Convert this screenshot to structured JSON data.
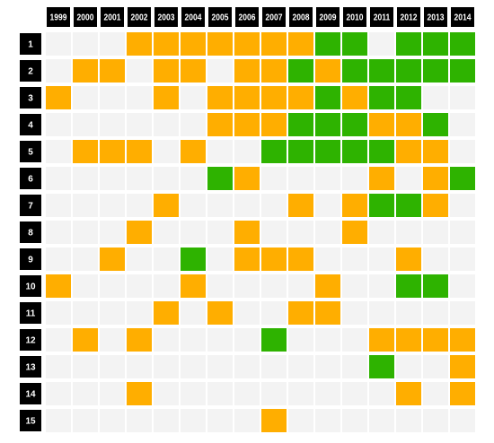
{
  "chart_data": {
    "type": "heatmap",
    "x": [
      "1999",
      "2000",
      "2001",
      "2002",
      "2003",
      "2004",
      "2005",
      "2006",
      "2007",
      "2008",
      "2009",
      "2010",
      "2011",
      "2012",
      "2013",
      "2014"
    ],
    "y": [
      "1",
      "2",
      "3",
      "4",
      "5",
      "6",
      "7",
      "8",
      "9",
      "10",
      "11",
      "12",
      "13",
      "14",
      "15"
    ],
    "colors": {
      "0": "#f3f3f3",
      "1": "#ffae00",
      "2": "#2eb300"
    },
    "values": [
      [
        0,
        0,
        0,
        1,
        1,
        1,
        1,
        1,
        1,
        1,
        2,
        2,
        0,
        2,
        2,
        2
      ],
      [
        0,
        1,
        1,
        0,
        1,
        1,
        0,
        1,
        1,
        2,
        1,
        2,
        2,
        2,
        2,
        2
      ],
      [
        1,
        0,
        0,
        0,
        1,
        0,
        1,
        1,
        1,
        1,
        2,
        1,
        2,
        2,
        0,
        0
      ],
      [
        0,
        0,
        0,
        0,
        0,
        0,
        1,
        1,
        1,
        2,
        2,
        2,
        1,
        1,
        2,
        0
      ],
      [
        0,
        1,
        1,
        1,
        0,
        1,
        0,
        0,
        2,
        2,
        2,
        2,
        2,
        1,
        1,
        0
      ],
      [
        0,
        0,
        0,
        0,
        0,
        0,
        2,
        1,
        0,
        0,
        0,
        0,
        1,
        0,
        1,
        2
      ],
      [
        0,
        0,
        0,
        0,
        1,
        0,
        0,
        0,
        0,
        1,
        0,
        1,
        2,
        2,
        1,
        0
      ],
      [
        0,
        0,
        0,
        1,
        0,
        0,
        0,
        1,
        0,
        0,
        0,
        1,
        0,
        0,
        0,
        0
      ],
      [
        0,
        0,
        1,
        0,
        0,
        2,
        0,
        1,
        1,
        1,
        0,
        0,
        0,
        1,
        0,
        0
      ],
      [
        1,
        0,
        0,
        0,
        0,
        1,
        0,
        0,
        0,
        0,
        1,
        0,
        0,
        2,
        2,
        0
      ],
      [
        0,
        0,
        0,
        0,
        1,
        0,
        1,
        0,
        0,
        1,
        1,
        0,
        0,
        0,
        0,
        0
      ],
      [
        0,
        1,
        0,
        1,
        0,
        0,
        0,
        0,
        2,
        0,
        0,
        0,
        1,
        1,
        1,
        1
      ],
      [
        0,
        0,
        0,
        0,
        0,
        0,
        0,
        0,
        0,
        0,
        0,
        0,
        2,
        0,
        0,
        1
      ],
      [
        0,
        0,
        0,
        1,
        0,
        0,
        0,
        0,
        0,
        0,
        0,
        0,
        0,
        1,
        0,
        1
      ],
      [
        0,
        0,
        0,
        0,
        0,
        0,
        0,
        0,
        1,
        0,
        0,
        0,
        0,
        0,
        0,
        0
      ]
    ]
  }
}
